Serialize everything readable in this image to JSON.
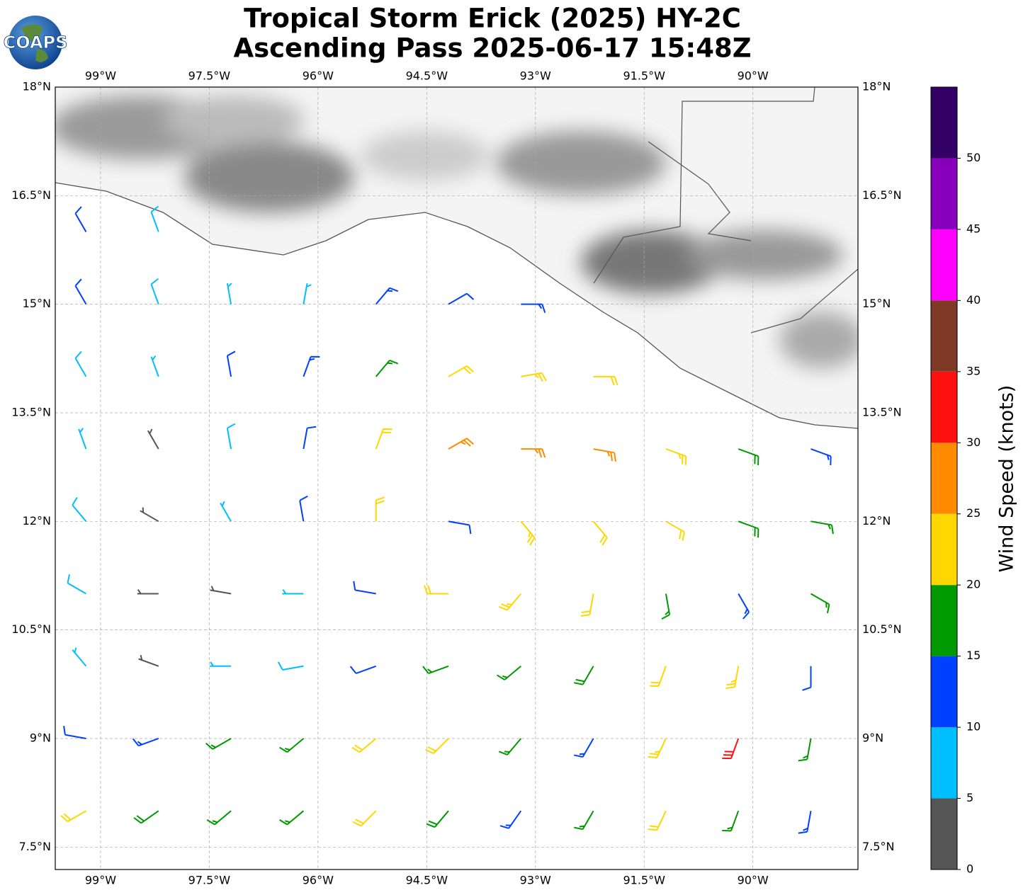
{
  "chart_data": {
    "type": "barbs",
    "title": "Tropical Storm Erick (2025) HY-2C",
    "subtitle": "Ascending Pass 2025-06-17 15:48Z",
    "logo": "COAPS",
    "xlim": [
      -99.625,
      -88.55
    ],
    "ylim": [
      7.19,
      18
    ],
    "xticks": [
      {
        "value": -99,
        "label": "99°W"
      },
      {
        "value": -97.5,
        "label": "97.5°W"
      },
      {
        "value": -96,
        "label": "96°W"
      },
      {
        "value": -94.5,
        "label": "94.5°W"
      },
      {
        "value": -93,
        "label": "93°W"
      },
      {
        "value": -91.5,
        "label": "91.5°W"
      },
      {
        "value": -90,
        "label": "90°W"
      }
    ],
    "yticks": [
      {
        "value": 18,
        "label": "18°N"
      },
      {
        "value": 16.5,
        "label": "16.5°N"
      },
      {
        "value": 15,
        "label": "15°N"
      },
      {
        "value": 13.5,
        "label": "13.5°N"
      },
      {
        "value": 12,
        "label": "12°N"
      },
      {
        "value": 10.5,
        "label": "10.5°N"
      },
      {
        "value": 9,
        "label": "9°N"
      },
      {
        "value": 7.5,
        "label": "7.5°N"
      }
    ],
    "grid": true,
    "colorbar": {
      "label": "Wind Speed (knots)",
      "lim": [
        0,
        55
      ],
      "ticks": [
        0,
        5,
        10,
        15,
        20,
        25,
        30,
        35,
        40,
        45,
        50
      ],
      "bounds": [
        0,
        5,
        10,
        15,
        20,
        25,
        30,
        35,
        40,
        45,
        50,
        55
      ],
      "colors": [
        "#555555",
        "#00bfff",
        "#0040ff",
        "#009900",
        "#ffd700",
        "#ff8c00",
        "#ff1010",
        "#7f3a27",
        "#ff00ff",
        "#8800bb",
        "#330066"
      ]
    },
    "observations": [
      [
        -99.2,
        16,
        12,
        330
      ],
      [
        -98.2,
        16,
        8,
        340
      ],
      [
        -99.2,
        15,
        10,
        330
      ],
      [
        -98.2,
        15,
        8,
        340
      ],
      [
        -97.2,
        15,
        7,
        350
      ],
      [
        -96.2,
        15,
        6,
        10
      ],
      [
        -95.2,
        15,
        14,
        40
      ],
      [
        -94.2,
        15,
        10,
        60
      ],
      [
        -93.2,
        15,
        13,
        90
      ],
      [
        -99.2,
        14,
        8,
        330
      ],
      [
        -98.2,
        14,
        5,
        340
      ],
      [
        -97.2,
        14,
        12,
        350
      ],
      [
        -96.2,
        14,
        13,
        20
      ],
      [
        -95.2,
        14,
        17,
        40
      ],
      [
        -94.2,
        14,
        22,
        60
      ],
      [
        -93.2,
        14,
        24,
        80
      ],
      [
        -92.2,
        14,
        22,
        90
      ],
      [
        -99.2,
        13,
        7,
        340
      ],
      [
        -98.2,
        13,
        4,
        330
      ],
      [
        -97.2,
        13,
        8,
        350
      ],
      [
        -96.2,
        13,
        12,
        10
      ],
      [
        -95.2,
        13,
        20,
        20
      ],
      [
        -94.2,
        13,
        26,
        60
      ],
      [
        -93.2,
        13,
        27,
        90
      ],
      [
        -92.2,
        13,
        26,
        100
      ],
      [
        -91.2,
        13,
        24,
        110
      ],
      [
        -90.2,
        13,
        18,
        110
      ],
      [
        -89.2,
        13,
        14,
        110
      ],
      [
        -99.2,
        12,
        9,
        320
      ],
      [
        -98.2,
        12,
        3,
        300
      ],
      [
        -97.2,
        12,
        6,
        330
      ],
      [
        -96.2,
        12,
        12,
        350
      ],
      [
        -95.2,
        12,
        20,
        0
      ],
      [
        -94.2,
        12,
        12,
        100
      ],
      [
        -93.2,
        12,
        24,
        140
      ],
      [
        -92.2,
        12,
        22,
        140
      ],
      [
        -91.2,
        12,
        20,
        120
      ],
      [
        -90.2,
        12,
        18,
        110
      ],
      [
        -89.2,
        12,
        15,
        100
      ],
      [
        -99.2,
        11,
        8,
        300
      ],
      [
        -98.2,
        11,
        3,
        270
      ],
      [
        -97.2,
        11,
        4,
        280
      ],
      [
        -96.2,
        11,
        6,
        270
      ],
      [
        -95.2,
        11,
        12,
        280
      ],
      [
        -94.2,
        11,
        22,
        270
      ],
      [
        -93.2,
        11,
        24,
        220
      ],
      [
        -92.2,
        11,
        20,
        190
      ],
      [
        -91.2,
        11,
        16,
        170
      ],
      [
        -90.2,
        11,
        14,
        150
      ],
      [
        -89.2,
        11,
        16,
        120
      ],
      [
        -99.2,
        10,
        5,
        320
      ],
      [
        -98.2,
        10,
        4,
        290
      ],
      [
        -97.2,
        10,
        7,
        270
      ],
      [
        -96.2,
        10,
        8,
        260
      ],
      [
        -95.2,
        10,
        12,
        250
      ],
      [
        -94.2,
        10,
        16,
        250
      ],
      [
        -93.2,
        10,
        17,
        230
      ],
      [
        -92.2,
        10,
        18,
        210
      ],
      [
        -91.2,
        10,
        20,
        200
      ],
      [
        -90.2,
        10,
        24,
        190
      ],
      [
        -89.2,
        10,
        12,
        180
      ],
      [
        -99.2,
        9,
        10,
        280
      ],
      [
        -98.2,
        9,
        13,
        250
      ],
      [
        -97.2,
        9,
        16,
        240
      ],
      [
        -96.2,
        9,
        17,
        230
      ],
      [
        -95.2,
        9,
        20,
        230
      ],
      [
        -94.2,
        9,
        22,
        225
      ],
      [
        -93.2,
        9,
        17,
        220
      ],
      [
        -92.2,
        9,
        14,
        210
      ],
      [
        -91.2,
        9,
        24,
        205
      ],
      [
        -90.2,
        9,
        31,
        200
      ],
      [
        -89.2,
        9,
        15,
        190
      ],
      [
        -99.2,
        8,
        22,
        240
      ],
      [
        -98.2,
        8,
        18,
        235
      ],
      [
        -97.2,
        8,
        17,
        230
      ],
      [
        -96.2,
        8,
        17,
        230
      ],
      [
        -95.2,
        8,
        20,
        225
      ],
      [
        -94.2,
        8,
        18,
        220
      ],
      [
        -93.2,
        8,
        14,
        215
      ],
      [
        -92.2,
        8,
        16,
        210
      ],
      [
        -91.2,
        8,
        22,
        205
      ],
      [
        -90.2,
        8,
        17,
        200
      ],
      [
        -89.2,
        8,
        13,
        190
      ]
    ]
  }
}
